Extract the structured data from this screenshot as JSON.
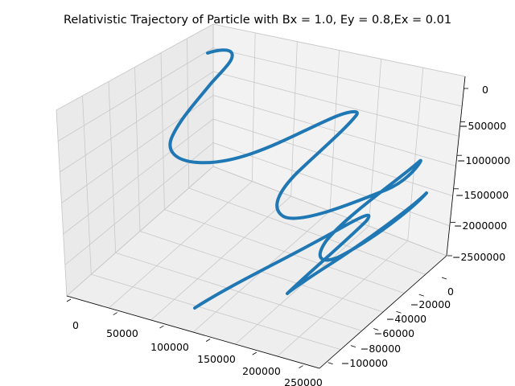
{
  "chart_data": {
    "type": "line3d",
    "title": "Relativistic Trajectory of Particle with Bx = 1.0, Ey = 0.8,Ex = 0.01",
    "series_color": "#1f77b4",
    "grid": true,
    "axes": {
      "x": {
        "label": "",
        "ticks": [
          "0",
          "50000",
          "100000",
          "150000",
          "200000",
          "250000"
        ],
        "range": [
          0,
          250000
        ]
      },
      "y": {
        "label": "",
        "ticks": [
          "0",
          "−20000",
          "−40000",
          "−60000",
          "−80000",
          "−100000"
        ],
        "range": [
          -100000,
          0
        ]
      },
      "z": {
        "label": "",
        "ticks": [
          "0",
          "−500000",
          "−1000000",
          "−1500000",
          "−2000000",
          "−2500000"
        ],
        "range": [
          -2500000,
          0
        ]
      }
    }
  }
}
